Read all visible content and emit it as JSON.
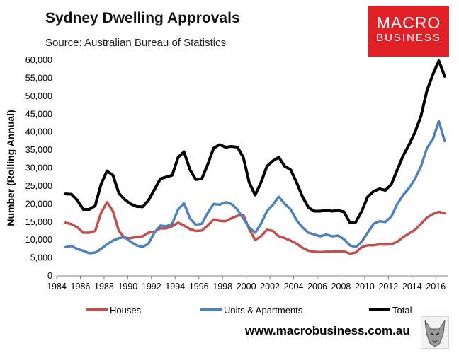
{
  "header": {
    "title": "Sydney Dwelling Approvals",
    "source": "Source: Australian Bureau of Statistics"
  },
  "logo": {
    "top": "MACRO",
    "bottom": "BUSINESS",
    "color": "#e01f26",
    "icon": "wolf-icon"
  },
  "footer": {
    "website": "www.macrobusiness.com.au"
  },
  "chart_data": {
    "type": "line",
    "title": "Sydney Dwelling Approvals",
    "xlabel": "",
    "ylabel": "Number (Rolling Annual)",
    "xlim": [
      1984,
      2017
    ],
    "ylim": [
      0,
      60000
    ],
    "x_ticks": [
      "1984",
      "1986",
      "1988",
      "1990",
      "1992",
      "1994",
      "1996",
      "1998",
      "2000",
      "2002",
      "2004",
      "2006",
      "2008",
      "2010",
      "2012",
      "2014",
      "2016"
    ],
    "y_ticks": [
      "0",
      "5,000",
      "10,000",
      "15,000",
      "20,000",
      "25,000",
      "30,000",
      "35,000",
      "40,000",
      "45,000",
      "50,000",
      "55,000",
      "60,000"
    ],
    "y_tick_values": [
      0,
      5000,
      10000,
      15000,
      20000,
      25000,
      30000,
      35000,
      40000,
      45000,
      50000,
      55000,
      60000
    ],
    "x_tick_values": [
      1984,
      1986,
      1988,
      1990,
      1992,
      1994,
      1996,
      1998,
      2000,
      2002,
      2004,
      2006,
      2008,
      2010,
      2012,
      2014,
      2016
    ],
    "legend_position": "bottom",
    "series": [
      {
        "name": "Houses",
        "color": "#c0504d",
        "points": [
          [
            1984.75,
            14800
          ],
          [
            1985.25,
            14400
          ],
          [
            1985.75,
            13500
          ],
          [
            1986.25,
            12000
          ],
          [
            1986.75,
            12000
          ],
          [
            1987.25,
            12500
          ],
          [
            1987.75,
            17500
          ],
          [
            1988.25,
            20500
          ],
          [
            1988.75,
            18000
          ],
          [
            1989.25,
            12500
          ],
          [
            1989.75,
            10500
          ],
          [
            1990.25,
            10500
          ],
          [
            1990.75,
            10800
          ],
          [
            1991.25,
            11000
          ],
          [
            1991.75,
            12000
          ],
          [
            1992.25,
            12300
          ],
          [
            1992.75,
            13200
          ],
          [
            1993.25,
            13200
          ],
          [
            1993.75,
            13800
          ],
          [
            1994.25,
            14800
          ],
          [
            1994.75,
            14000
          ],
          [
            1995.25,
            13000
          ],
          [
            1995.75,
            12500
          ],
          [
            1996.25,
            12600
          ],
          [
            1996.75,
            14000
          ],
          [
            1997.25,
            15700
          ],
          [
            1997.75,
            15300
          ],
          [
            1998.25,
            15200
          ],
          [
            1998.75,
            16000
          ],
          [
            1999.25,
            16700
          ],
          [
            1999.75,
            17000
          ],
          [
            2000.25,
            13000
          ],
          [
            2000.75,
            10000
          ],
          [
            2001.25,
            11000
          ],
          [
            2001.75,
            12800
          ],
          [
            2002.25,
            12500
          ],
          [
            2002.75,
            11000
          ],
          [
            2003.25,
            10500
          ],
          [
            2003.75,
            9800
          ],
          [
            2004.25,
            9000
          ],
          [
            2004.75,
            7800
          ],
          [
            2005.25,
            7000
          ],
          [
            2005.75,
            6700
          ],
          [
            2006.25,
            6600
          ],
          [
            2006.75,
            6700
          ],
          [
            2007.25,
            6700
          ],
          [
            2007.75,
            6800
          ],
          [
            2008.25,
            6800
          ],
          [
            2008.75,
            6200
          ],
          [
            2009.25,
            6500
          ],
          [
            2009.75,
            8000
          ],
          [
            2010.25,
            8500
          ],
          [
            2010.75,
            8500
          ],
          [
            2011.25,
            8800
          ],
          [
            2011.75,
            8700
          ],
          [
            2012.25,
            8800
          ],
          [
            2012.75,
            9500
          ],
          [
            2013.25,
            10800
          ],
          [
            2013.75,
            11800
          ],
          [
            2014.25,
            12800
          ],
          [
            2014.75,
            14500
          ],
          [
            2015.25,
            16200
          ],
          [
            2015.75,
            17200
          ],
          [
            2016.25,
            17800
          ],
          [
            2016.75,
            17400
          ]
        ]
      },
      {
        "name": "Units & Apartments",
        "color": "#4f81bd",
        "points": [
          [
            1984.75,
            8000
          ],
          [
            1985.25,
            8300
          ],
          [
            1985.75,
            7500
          ],
          [
            1986.25,
            7000
          ],
          [
            1986.75,
            6300
          ],
          [
            1987.25,
            6500
          ],
          [
            1987.75,
            7500
          ],
          [
            1988.25,
            8800
          ],
          [
            1988.75,
            9800
          ],
          [
            1989.25,
            10500
          ],
          [
            1989.75,
            10800
          ],
          [
            1990.25,
            9500
          ],
          [
            1990.75,
            8500
          ],
          [
            1991.25,
            8000
          ],
          [
            1991.75,
            9000
          ],
          [
            1992.25,
            12000
          ],
          [
            1992.75,
            14000
          ],
          [
            1993.25,
            13800
          ],
          [
            1993.75,
            14500
          ],
          [
            1994.25,
            18500
          ],
          [
            1994.75,
            20200
          ],
          [
            1995.25,
            16000
          ],
          [
            1995.75,
            14200
          ],
          [
            1996.25,
            14500
          ],
          [
            1996.75,
            17500
          ],
          [
            1997.25,
            20000
          ],
          [
            1997.75,
            19800
          ],
          [
            1998.25,
            20500
          ],
          [
            1998.75,
            20000
          ],
          [
            1999.25,
            18500
          ],
          [
            1999.75,
            16000
          ],
          [
            2000.25,
            13500
          ],
          [
            2000.75,
            12000
          ],
          [
            2001.25,
            14500
          ],
          [
            2001.75,
            18000
          ],
          [
            2002.25,
            19800
          ],
          [
            2002.75,
            22000
          ],
          [
            2003.25,
            20000
          ],
          [
            2003.75,
            18500
          ],
          [
            2004.25,
            15500
          ],
          [
            2004.75,
            13500
          ],
          [
            2005.25,
            12000
          ],
          [
            2005.75,
            11500
          ],
          [
            2006.25,
            11000
          ],
          [
            2006.75,
            11500
          ],
          [
            2007.25,
            11000
          ],
          [
            2007.75,
            11200
          ],
          [
            2008.25,
            10200
          ],
          [
            2008.75,
            8500
          ],
          [
            2009.25,
            8000
          ],
          [
            2009.75,
            9500
          ],
          [
            2010.25,
            12000
          ],
          [
            2010.75,
            14500
          ],
          [
            2011.25,
            15200
          ],
          [
            2011.75,
            15000
          ],
          [
            2012.25,
            16500
          ],
          [
            2012.75,
            20000
          ],
          [
            2013.25,
            22500
          ],
          [
            2013.75,
            24500
          ],
          [
            2014.25,
            27000
          ],
          [
            2014.75,
            30500
          ],
          [
            2015.25,
            35500
          ],
          [
            2015.75,
            38000
          ],
          [
            2016.25,
            43000
          ],
          [
            2016.75,
            37500
          ]
        ]
      },
      {
        "name": "Total",
        "color": "#000000",
        "points": [
          [
            1984.75,
            22800
          ],
          [
            1985.25,
            22700
          ],
          [
            1985.75,
            21000
          ],
          [
            1986.25,
            18500
          ],
          [
            1986.75,
            18500
          ],
          [
            1987.25,
            19500
          ],
          [
            1987.75,
            25500
          ],
          [
            1988.25,
            29200
          ],
          [
            1988.75,
            28000
          ],
          [
            1989.25,
            23000
          ],
          [
            1989.75,
            21200
          ],
          [
            1990.25,
            20000
          ],
          [
            1990.75,
            19300
          ],
          [
            1991.25,
            19200
          ],
          [
            1991.75,
            21000
          ],
          [
            1992.25,
            24000
          ],
          [
            1992.75,
            27000
          ],
          [
            1993.25,
            27500
          ],
          [
            1993.75,
            28000
          ],
          [
            1994.25,
            33000
          ],
          [
            1994.75,
            34500
          ],
          [
            1995.25,
            29500
          ],
          [
            1995.75,
            26800
          ],
          [
            1996.25,
            27000
          ],
          [
            1996.75,
            31000
          ],
          [
            1997.25,
            35500
          ],
          [
            1997.75,
            36500
          ],
          [
            1998.25,
            35800
          ],
          [
            1998.75,
            36000
          ],
          [
            1999.25,
            35800
          ],
          [
            1999.75,
            33000
          ],
          [
            2000.25,
            26000
          ],
          [
            2000.75,
            22500
          ],
          [
            2001.25,
            26000
          ],
          [
            2001.75,
            30500
          ],
          [
            2002.25,
            32000
          ],
          [
            2002.75,
            33000
          ],
          [
            2003.25,
            30500
          ],
          [
            2003.75,
            29500
          ],
          [
            2004.25,
            26000
          ],
          [
            2004.75,
            22000
          ],
          [
            2005.25,
            19000
          ],
          [
            2005.75,
            18000
          ],
          [
            2006.25,
            18000
          ],
          [
            2006.75,
            18300
          ],
          [
            2007.25,
            18000
          ],
          [
            2007.75,
            18200
          ],
          [
            2008.25,
            17800
          ],
          [
            2008.75,
            14800
          ],
          [
            2009.25,
            15000
          ],
          [
            2009.75,
            18000
          ],
          [
            2010.25,
            22000
          ],
          [
            2010.75,
            23500
          ],
          [
            2011.25,
            24200
          ],
          [
            2011.75,
            23800
          ],
          [
            2012.25,
            25500
          ],
          [
            2012.75,
            29500
          ],
          [
            2013.25,
            33500
          ],
          [
            2013.75,
            36500
          ],
          [
            2014.25,
            40000
          ],
          [
            2014.75,
            44500
          ],
          [
            2015.25,
            51500
          ],
          [
            2015.75,
            56000
          ],
          [
            2016.25,
            59800
          ],
          [
            2016.75,
            55500
          ]
        ]
      }
    ]
  }
}
